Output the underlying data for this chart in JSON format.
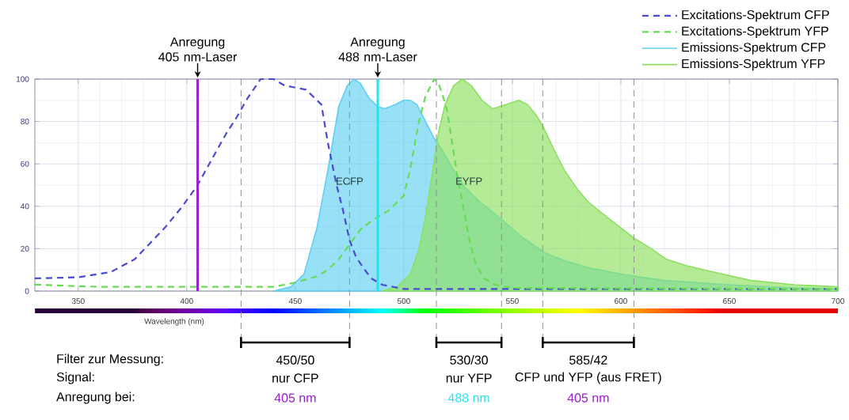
{
  "chart_data": {
    "type": "line",
    "xlim": [
      330,
      700
    ],
    "xticks": [
      350,
      400,
      450,
      500,
      550,
      600,
      650,
      700
    ],
    "ylim": [
      0,
      100
    ],
    "yticks": [
      0,
      20,
      40,
      60,
      80,
      100
    ],
    "grid": true,
    "legend": "top right",
    "marker": "none",
    "series": [
      {
        "name": "Excitations-Spektrum CFP",
        "line_style": "dashed",
        "color": "#4a4ad0",
        "x": [
          330,
          350,
          365,
          376,
          390,
          398,
          405,
          412,
          418,
          423,
          428,
          434,
          440,
          445,
          450,
          455,
          462,
          465,
          467,
          469,
          472,
          475,
          478,
          482,
          485,
          490,
          500,
          550,
          700
        ],
        "values": [
          6,
          6.5,
          9,
          15,
          30,
          40,
          50,
          63,
          74,
          82,
          91,
          100,
          100,
          97,
          96,
          95,
          88,
          70,
          60,
          50,
          38,
          24,
          16,
          10,
          6,
          3,
          1,
          1,
          1
        ]
      },
      {
        "name": "Excitations-Spektrum YFP",
        "line_style": "dashed",
        "color": "#66dd55",
        "x": [
          330,
          360,
          440,
          450,
          460,
          465,
          470,
          475,
          480,
          485,
          488,
          493,
          500,
          503,
          507,
          510,
          514,
          516,
          518,
          520,
          523,
          525,
          527,
          530,
          533,
          537,
          542,
          550,
          700
        ],
        "values": [
          3,
          2,
          2,
          4,
          7,
          10,
          15,
          22,
          29,
          33,
          35,
          38,
          45,
          58,
          80,
          92,
          100,
          98,
          92,
          85,
          65,
          52,
          42,
          25,
          13,
          6,
          3,
          1.5,
          1
        ]
      },
      {
        "name": "Emissions-Spektrum CFP",
        "type": "area",
        "line_style": "solid",
        "color": "#5fd0f0",
        "x": [
          440,
          448,
          454,
          460,
          465,
          470,
          474,
          477,
          480,
          484,
          488,
          491,
          496,
          500,
          503,
          506,
          510,
          514,
          518,
          523,
          528,
          535,
          540,
          546,
          555,
          565,
          575,
          585,
          600,
          620,
          650,
          680,
          700
        ],
        "values": [
          0,
          2,
          8,
          30,
          57,
          87,
          97,
          100,
          98,
          91,
          87,
          86,
          88,
          90,
          90,
          88,
          80,
          72,
          66,
          57,
          49,
          42,
          38,
          33,
          25,
          18,
          14,
          11,
          8,
          5,
          3,
          1.5,
          1
        ]
      },
      {
        "name": "Emissions-Spektrum YFP",
        "type": "area",
        "line_style": "solid",
        "color": "#8ee060",
        "x": [
          490,
          497,
          503,
          507,
          510,
          513,
          516,
          519,
          523,
          527,
          531,
          536,
          541,
          547,
          553,
          557,
          561,
          564,
          569,
          574,
          580,
          585,
          591,
          596,
          606,
          614,
          621,
          630,
          640,
          660,
          680,
          700
        ],
        "values": [
          0,
          2,
          8,
          20,
          35,
          55,
          75,
          88,
          97,
          100,
          97,
          90,
          86,
          88,
          90,
          88,
          83,
          78,
          67,
          57,
          48,
          42,
          37,
          33,
          25,
          20,
          15,
          12,
          9.6,
          5,
          3,
          2
        ]
      }
    ],
    "ref_lines": [
      {
        "axis": "x",
        "value": 405,
        "label": "Anregung 405 nm-Laser",
        "color": "#9b1fd0",
        "line_style": "solid"
      },
      {
        "axis": "x",
        "value": 488,
        "label": "Anregung 488 nm-Laser",
        "color": "#22e5f0",
        "line_style": "solid"
      },
      {
        "axis": "x",
        "value": 425,
        "color": "#909090",
        "line_style": "dashed"
      },
      {
        "axis": "x",
        "value": 475,
        "color": "#909090",
        "line_style": "dashed"
      },
      {
        "axis": "x",
        "value": 515,
        "color": "#909090",
        "line_style": "dashed"
      },
      {
        "axis": "x",
        "value": 545,
        "color": "#909090",
        "line_style": "dashed"
      },
      {
        "axis": "x",
        "value": 564,
        "color": "#909090",
        "line_style": "dashed"
      },
      {
        "axis": "x",
        "value": 606,
        "color": "#909090",
        "line_style": "dashed"
      }
    ],
    "annotations": [
      "Filter zur Messung:",
      "Signal:",
      "Anregung bei:",
      "450/50",
      "530/30",
      "585/42",
      "nur CFP",
      "nur YFP",
      "CFP und YFP (aus FRET)",
      "405 nm",
      "488 nm",
      "405 nm",
      "Wavelength (nm)",
      "ECFP",
      "EYFP"
    ]
  }
}
